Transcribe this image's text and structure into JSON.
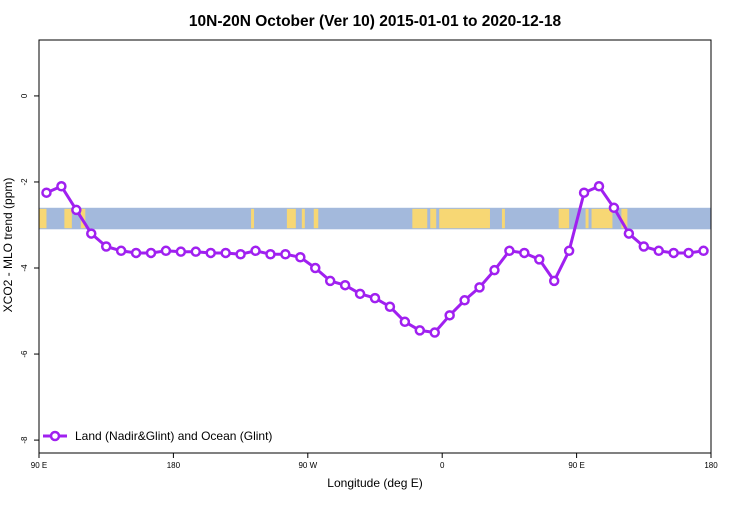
{
  "chart_data": {
    "type": "line",
    "title": "10N-20N October (Ver 10)   2015-01-01 to 2020-12-18",
    "xlabel": "Longitude (deg E)",
    "ylabel": "XCO2 - MLO trend (ppm)",
    "xlim": [
      90,
      540
    ],
    "ylim": [
      -8.3,
      1.3
    ],
    "x_ticks": [
      {
        "value": 90,
        "label": "90 E"
      },
      {
        "value": 180,
        "label": "180"
      },
      {
        "value": 270,
        "label": "90 W"
      },
      {
        "value": 360,
        "label": "0"
      },
      {
        "value": 450,
        "label": "90 E"
      },
      {
        "value": 540,
        "label": "180"
      }
    ],
    "y_ticks": [
      {
        "value": 0,
        "label": "0"
      },
      {
        "value": -2,
        "label": "-2"
      },
      {
        "value": -4,
        "label": "-4"
      },
      {
        "value": -6,
        "label": "-6"
      },
      {
        "value": -8,
        "label": "-8"
      }
    ],
    "grid": false,
    "legend_position": "bottom-left",
    "land_mask_band": {
      "y_top": -2.6,
      "y_bottom": -3.1,
      "ocean_color": "#a3b9dc",
      "land_color": "#f7d774"
    },
    "series": [
      {
        "name": "Land (Nadir&Glint) and Ocean (Glint)",
        "color": "#a020f0",
        "x": [
          95,
          105,
          115,
          125,
          135,
          145,
          155,
          165,
          175,
          185,
          195,
          205,
          215,
          225,
          235,
          245,
          255,
          265,
          275,
          285,
          295,
          305,
          315,
          325,
          335,
          345,
          355,
          365,
          375,
          385,
          395,
          405,
          415,
          425,
          435,
          445,
          455,
          465,
          475,
          485,
          495,
          505,
          515,
          525,
          535
        ],
        "y": [
          -2.25,
          -2.1,
          -2.65,
          -3.2,
          -3.5,
          -3.6,
          -3.65,
          -3.65,
          -3.6,
          -3.62,
          -3.62,
          -3.65,
          -3.65,
          -3.68,
          -3.6,
          -3.68,
          -3.68,
          -3.75,
          -4.0,
          -4.3,
          -4.4,
          -4.6,
          -4.7,
          -4.9,
          -5.25,
          -5.45,
          -5.5,
          -5.1,
          -4.75,
          -4.45,
          -4.05,
          -3.6,
          -3.65,
          -3.8,
          -4.3,
          -3.6,
          -2.25,
          -2.1,
          -2.6,
          -3.2,
          -3.5,
          -3.6,
          -3.65,
          -3.65,
          -3.6
        ]
      }
    ]
  }
}
